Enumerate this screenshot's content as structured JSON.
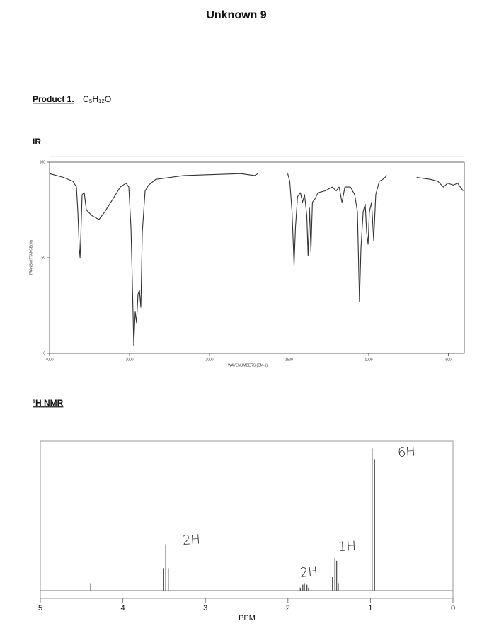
{
  "title": "Unknown 9",
  "product_label": "Product 1.",
  "formula": "C₅H₁₂O",
  "chart_data": [
    {
      "type": "line",
      "heading": "IR",
      "y_label": "TRANSMITTANCE(%)",
      "x_label": "WAVENUMBERS (CM-1)",
      "xlim": [
        4000,
        400
      ],
      "x_break": 2000,
      "xticks": [
        4000,
        3000,
        2000,
        1500,
        1000,
        500
      ],
      "ylim": [
        0,
        100
      ],
      "yticks": [
        0,
        50,
        100
      ],
      "color": "#333333",
      "x": [
        4000,
        3823,
        3708,
        3664,
        3646,
        3628,
        3619,
        3611,
        3593,
        3566,
        3540,
        3469,
        3381,
        3310,
        3204,
        3115,
        3044,
        3009,
        2982,
        2965,
        2947,
        2929,
        2912,
        2894,
        2876,
        2858,
        2841,
        2805,
        2761,
        2673,
        2319,
        1805,
        1717,
        1695,
        1600,
        1509,
        1496,
        1482,
        1469,
        1460,
        1447,
        1429,
        1416,
        1403,
        1389,
        1381,
        1372,
        1363,
        1354,
        1336,
        1319,
        1274,
        1230,
        1204,
        1186,
        1168,
        1150,
        1115,
        1088,
        1071,
        1058,
        1049,
        1035,
        1022,
        1013,
        1004,
        996,
        982,
        969,
        956,
        934,
        912,
        885,
        790,
        699,
        611,
        566,
        531,
        504,
        469,
        442,
        407
      ],
      "values": [
        94,
        92,
        90,
        87,
        74,
        55,
        50,
        59,
        83,
        84,
        75,
        72,
        70,
        74,
        81,
        87,
        89,
        87,
        66,
        37,
        4,
        22,
        16,
        31,
        33,
        24,
        63,
        85,
        88,
        91,
        93,
        94,
        93,
        94,
        null,
        94,
        90,
        74,
        46,
        66,
        82,
        84,
        79,
        83,
        72,
        51,
        76,
        53,
        79,
        81,
        84,
        85,
        87,
        85,
        87,
        79,
        87,
        87,
        83,
        74,
        27,
        55,
        74,
        78,
        63,
        57,
        74,
        79,
        59,
        83,
        90,
        91,
        93,
        null,
        92,
        91,
        90,
        87,
        89,
        88,
        89,
        85
      ]
    },
    {
      "type": "stick",
      "heading": "¹H NMR",
      "x_label": "PPM",
      "xlim": [
        5,
        0
      ],
      "xticks": [
        5,
        4,
        3,
        2,
        1,
        0
      ],
      "ylim": [
        0,
        100
      ],
      "color": "#555555",
      "x": [
        4.39,
        3.51,
        3.48,
        3.45,
        1.85,
        1.82,
        1.8,
        1.77,
        1.75,
        1.46,
        1.43,
        1.41,
        1.39,
        0.98,
        0.95
      ],
      "values": [
        5,
        15,
        31,
        15,
        2,
        4,
        5,
        4,
        2,
        9,
        22,
        20,
        5,
        95,
        88
      ],
      "annotations": [
        "2H",
        "2H",
        "1H",
        "6H"
      ]
    }
  ]
}
